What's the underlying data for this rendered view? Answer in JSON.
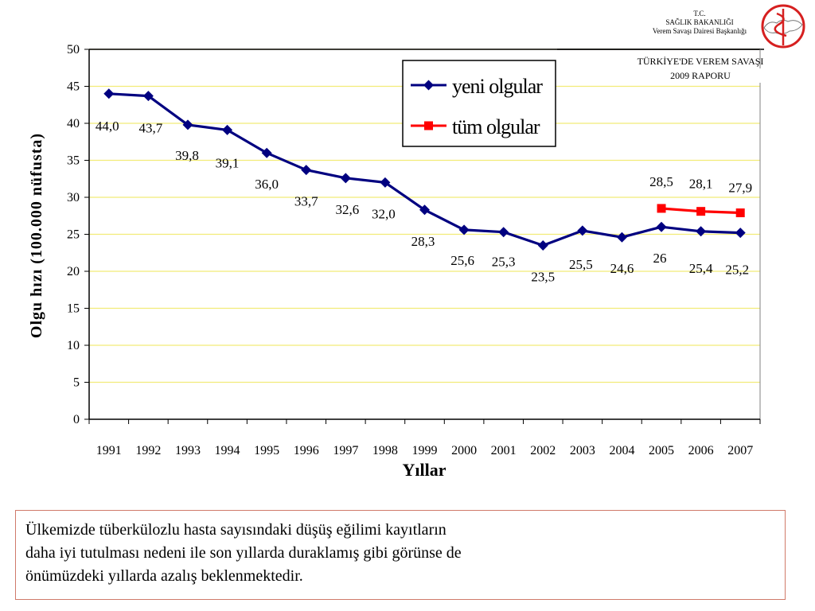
{
  "header": {
    "org_line1": "T.C.",
    "org_line2": "SAĞLIK BAKANLIĞI",
    "org_line3": "Verem Savaşı Dairesi Başkanlığı",
    "report_line1": "TÜRKİYE'DE VEREM SAVAŞI",
    "report_line2": "2009 RAPORU"
  },
  "chart_data": {
    "type": "line",
    "xlabel": "Yıllar",
    "ylabel": "Olgu hızı (100.000 nüfusta)",
    "ylim": [
      0,
      50
    ],
    "yticks": [
      "0",
      "5",
      "10",
      "15",
      "20",
      "25",
      "30",
      "35",
      "40",
      "45",
      "50"
    ],
    "categories": [
      "1991",
      "1992",
      "1993",
      "1994",
      "1995",
      "1996",
      "1997",
      "1998",
      "1999",
      "2000",
      "2001",
      "2002",
      "2003",
      "2004",
      "2005",
      "2006",
      "2007"
    ],
    "grid": true,
    "legend": "top-center",
    "series": [
      {
        "name": "yeni olgular",
        "color": "#000080",
        "marker": "diamond",
        "values": [
          44.0,
          43.7,
          39.8,
          39.1,
          36.0,
          33.7,
          32.6,
          32.0,
          28.3,
          25.6,
          25.3,
          23.5,
          25.5,
          24.6,
          26,
          25.4,
          25.2
        ],
        "labels": [
          "44,0",
          "43,7",
          "39,8",
          "39,1",
          "36,0",
          "33,7",
          "32,6",
          "32,0",
          "28,3",
          "25,6",
          "25,3",
          "23,5",
          "25,5",
          "24,6",
          "26",
          "25,4",
          "25,2"
        ]
      },
      {
        "name": "tüm olgular",
        "color": "#ff0000",
        "marker": "square",
        "values": [
          null,
          null,
          null,
          null,
          null,
          null,
          null,
          null,
          null,
          null,
          null,
          null,
          null,
          null,
          28.5,
          28.1,
          27.9
        ],
        "labels": [
          null,
          null,
          null,
          null,
          null,
          null,
          null,
          null,
          null,
          null,
          null,
          null,
          null,
          null,
          "28,5",
          "28,1",
          "27,9"
        ]
      }
    ]
  },
  "note": {
    "line1": "Ülkemizde  tüberkülozlu hasta sayısındaki düşüş eğilimi kayıtların",
    "line2": "daha iyi tutulması nedeni ile son yıllarda duraklamış gibi görünse de",
    "line3": "önümüzdeki yıllarda azalış beklenmektedir."
  },
  "logo": {
    "icon": "ministry-of-health-logo-icon"
  }
}
